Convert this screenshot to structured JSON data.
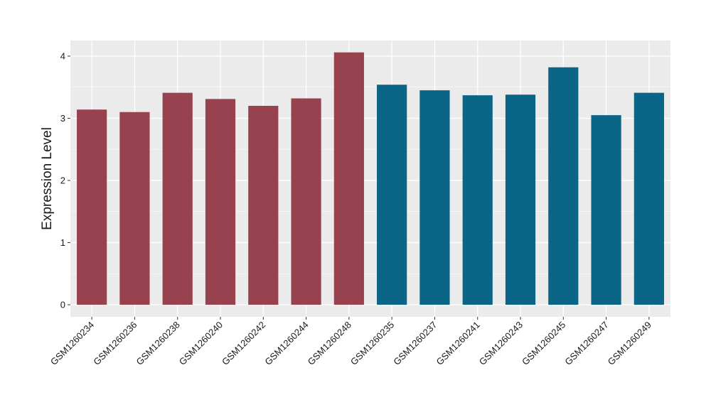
{
  "chart_data": {
    "type": "bar",
    "title": "",
    "xlabel": "",
    "ylabel": "Expression Level",
    "ylim": [
      0,
      4.2
    ],
    "yticks": [
      0,
      1,
      2,
      3,
      4
    ],
    "grid": true,
    "legend": "none",
    "panel_background": "#ebebeb",
    "gridline_color": "#ffffff",
    "categories": [
      "GSM1260234",
      "GSM1260236",
      "GSM1260238",
      "GSM1260240",
      "GSM1260242",
      "GSM1260244",
      "GSM1260248",
      "GSM1260235",
      "GSM1260237",
      "GSM1260241",
      "GSM1260243",
      "GSM1260245",
      "GSM1260247",
      "GSM1260249"
    ],
    "values": [
      3.14,
      3.1,
      3.41,
      3.31,
      3.2,
      3.32,
      4.06,
      3.54,
      3.45,
      3.37,
      3.38,
      3.82,
      3.05,
      3.41
    ],
    "bar_colors": [
      "#98414f",
      "#98414f",
      "#98414f",
      "#98414f",
      "#98414f",
      "#98414f",
      "#98414f",
      "#0b6586",
      "#0b6586",
      "#0b6586",
      "#0b6586",
      "#0b6586",
      "#0b6586",
      "#0b6586"
    ]
  }
}
